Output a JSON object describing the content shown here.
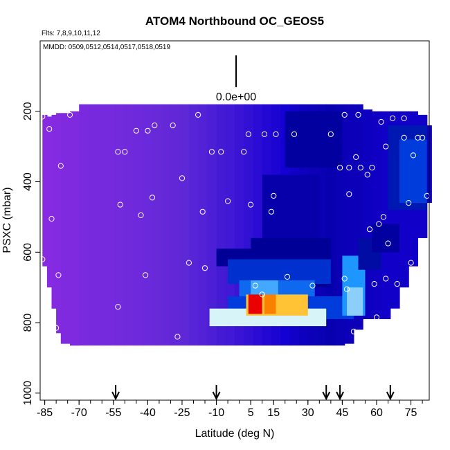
{
  "chart_data": {
    "type": "heatmap",
    "title": "ATOM4 Northbound OC_GEOS5",
    "flights_note": "Flts: 7,8,9,10,11,12",
    "dates_note": "MMDD: 0509,0512,0514,0517,0518,0519",
    "scale_label": "0.0e+00",
    "xlabel": "Latitude (deg N)",
    "ylabel": "PSXC (mbar)",
    "xlim": [
      -87,
      83
    ],
    "ylim": [
      1020,
      0
    ],
    "x_ticks": [
      -85,
      -70,
      -55,
      -40,
      -25,
      -10,
      5,
      15,
      30,
      45,
      60,
      75
    ],
    "x_tick_labels": [
      "-85",
      "-70",
      "-55",
      "-40",
      "-25",
      "-10",
      "5",
      "15",
      "30",
      "45",
      "60",
      "75"
    ],
    "y_ticks": [
      200,
      400,
      600,
      800,
      1000
    ],
    "y_tick_labels": [
      "200",
      "400",
      "600",
      "800",
      "1000"
    ],
    "colors": {
      "violet": "#8a2be2",
      "dark_blue": "#0000cd",
      "light_cyan": "#d8f6f6",
      "red": "#ff0000",
      "point_stroke": "#ffffff"
    },
    "columns": [
      {
        "lat": -86,
        "top": 210,
        "bottom": 640,
        "v": 0.02
      },
      {
        "lat": -84,
        "top": 215,
        "bottom": 700,
        "v": 0.03
      },
      {
        "lat": -82,
        "top": 210,
        "bottom": 760,
        "v": 0.04
      },
      {
        "lat": -80,
        "top": 205,
        "bottom": 830,
        "v": 0.05
      },
      {
        "lat": -78,
        "top": 205,
        "bottom": 860,
        "v": 0.07
      },
      {
        "lat": -74,
        "top": 200,
        "bottom": 865,
        "v": 0.08
      },
      {
        "lat": -70,
        "top": 180,
        "bottom": 865,
        "v": 0.12
      },
      {
        "lat": -66,
        "top": 180,
        "bottom": 865,
        "v": 0.13
      },
      {
        "lat": -62,
        "top": 180,
        "bottom": 865,
        "v": 0.14
      },
      {
        "lat": -58,
        "top": 180,
        "bottom": 865,
        "v": 0.15
      },
      {
        "lat": -54,
        "top": 180,
        "bottom": 865,
        "v": 0.16
      },
      {
        "lat": -50,
        "top": 180,
        "bottom": 865,
        "v": 0.18
      },
      {
        "lat": -46,
        "top": 180,
        "bottom": 865,
        "v": 0.2
      },
      {
        "lat": -42,
        "top": 180,
        "bottom": 865,
        "v": 0.22
      },
      {
        "lat": -38,
        "top": 180,
        "bottom": 865,
        "v": 0.24
      },
      {
        "lat": -34,
        "top": 180,
        "bottom": 865,
        "v": 0.26
      },
      {
        "lat": -30,
        "top": 180,
        "bottom": 865,
        "v": 0.28
      },
      {
        "lat": -26,
        "top": 180,
        "bottom": 865,
        "v": 0.3
      },
      {
        "lat": -22,
        "top": 180,
        "bottom": 865,
        "v": 0.32
      },
      {
        "lat": -18,
        "top": 180,
        "bottom": 865,
        "v": 0.33
      },
      {
        "lat": -14,
        "top": 180,
        "bottom": 865,
        "v": 0.35
      },
      {
        "lat": -10,
        "top": 180,
        "bottom": 865,
        "v": 0.37
      },
      {
        "lat": -6,
        "top": 180,
        "bottom": 865,
        "v": 0.38
      },
      {
        "lat": -2,
        "top": 180,
        "bottom": 865,
        "v": 0.4
      },
      {
        "lat": 2,
        "top": 180,
        "bottom": 865,
        "v": 0.42
      },
      {
        "lat": 6,
        "top": 180,
        "bottom": 865,
        "v": 0.44
      },
      {
        "lat": 10,
        "top": 180,
        "bottom": 865,
        "v": 0.46
      },
      {
        "lat": 14,
        "top": 180,
        "bottom": 865,
        "v": 0.48
      },
      {
        "lat": 18,
        "top": 180,
        "bottom": 865,
        "v": 0.5
      },
      {
        "lat": 22,
        "top": 180,
        "bottom": 865,
        "v": 0.52
      },
      {
        "lat": 26,
        "top": 180,
        "bottom": 865,
        "v": 0.54
      },
      {
        "lat": 30,
        "top": 180,
        "bottom": 865,
        "v": 0.55
      },
      {
        "lat": 34,
        "top": 180,
        "bottom": 865,
        "v": 0.56
      },
      {
        "lat": 38,
        "top": 180,
        "bottom": 865,
        "v": 0.57
      },
      {
        "lat": 42,
        "top": 180,
        "bottom": 865,
        "v": 0.56
      },
      {
        "lat": 46,
        "top": 180,
        "bottom": 860,
        "v": 0.55
      },
      {
        "lat": 50,
        "top": 180,
        "bottom": 820,
        "v": 0.55
      },
      {
        "lat": 54,
        "top": 195,
        "bottom": 790,
        "v": 0.54
      },
      {
        "lat": 58,
        "top": 200,
        "bottom": 790,
        "v": 0.53
      },
      {
        "lat": 62,
        "top": 200,
        "bottom": 790,
        "v": 0.52
      },
      {
        "lat": 66,
        "top": 200,
        "bottom": 760,
        "v": 0.52
      },
      {
        "lat": 70,
        "top": 200,
        "bottom": 700,
        "v": 0.52
      },
      {
        "lat": 74,
        "top": 200,
        "bottom": 640,
        "v": 0.52
      },
      {
        "lat": 78,
        "top": 210,
        "bottom": 560,
        "v": 0.52
      },
      {
        "lat": 82,
        "top": 240,
        "bottom": 460,
        "v": 0.52
      }
    ],
    "features": [
      {
        "lat0": -10,
        "lat1": 5,
        "p0": 590,
        "p1": 640,
        "v": 0.62
      },
      {
        "lat0": 5,
        "lat1": 40,
        "p0": 560,
        "p1": 700,
        "v": 0.62
      },
      {
        "lat0": -5,
        "lat1": 40,
        "p0": 620,
        "p1": 690,
        "v": 0.7
      },
      {
        "lat0": 0,
        "lat1": 33,
        "p0": 680,
        "p1": 730,
        "v": 0.75
      },
      {
        "lat0": 5,
        "lat1": 17,
        "p0": 680,
        "p1": 720,
        "v": 0.8
      },
      {
        "lat0": -5,
        "lat1": 50,
        "p0": 725,
        "p1": 790,
        "v": 0.72
      },
      {
        "lat0": -13,
        "lat1": 38,
        "p0": 760,
        "p1": 810,
        "v": 0.88
      },
      {
        "lat0": 3,
        "lat1": 30,
        "p0": 720,
        "p1": 780,
        "v": 0.95
      },
      {
        "lat0": 4,
        "lat1": 10,
        "p0": 720,
        "p1": 775,
        "v": 1.0
      },
      {
        "lat0": 11,
        "lat1": 16,
        "p0": 720,
        "p1": 775,
        "v": 0.97
      },
      {
        "lat0": 45,
        "lat1": 55,
        "p0": 610,
        "p1": 780,
        "v": 0.78
      },
      {
        "lat0": 47,
        "lat1": 54,
        "p0": 700,
        "p1": 780,
        "v": 0.84
      },
      {
        "lat0": 52,
        "lat1": 62,
        "p0": 560,
        "p1": 650,
        "v": 0.64
      },
      {
        "lat0": 58,
        "lat1": 70,
        "p0": 520,
        "p1": 600,
        "v": 0.6
      },
      {
        "lat0": 65,
        "lat1": 82,
        "p0": 240,
        "p1": 480,
        "v": 0.66
      },
      {
        "lat0": 70,
        "lat1": 82,
        "p0": 280,
        "p1": 460,
        "v": 0.72
      },
      {
        "lat0": 20,
        "lat1": 45,
        "p0": 200,
        "p1": 360,
        "v": 0.6
      },
      {
        "lat0": 10,
        "lat1": 35,
        "p0": 380,
        "p1": 560,
        "v": 0.58
      }
    ],
    "points": [
      {
        "lat": -86,
        "p": 215
      },
      {
        "lat": -83,
        "p": 250
      },
      {
        "lat": -74,
        "p": 210
      },
      {
        "lat": -78,
        "p": 355
      },
      {
        "lat": -82,
        "p": 505
      },
      {
        "lat": -86,
        "p": 620
      },
      {
        "lat": -79,
        "p": 665
      },
      {
        "lat": -80,
        "p": 815
      },
      {
        "lat": -53,
        "p": 755
      },
      {
        "lat": -53,
        "p": 315
      },
      {
        "lat": -50,
        "p": 315
      },
      {
        "lat": -45,
        "p": 255
      },
      {
        "lat": -40,
        "p": 255
      },
      {
        "lat": -37,
        "p": 240
      },
      {
        "lat": -52,
        "p": 465
      },
      {
        "lat": -43,
        "p": 495
      },
      {
        "lat": -38,
        "p": 445
      },
      {
        "lat": -41,
        "p": 665
      },
      {
        "lat": -29,
        "p": 240
      },
      {
        "lat": -25,
        "p": 390
      },
      {
        "lat": -22,
        "p": 630
      },
      {
        "lat": -18,
        "p": 210
      },
      {
        "lat": -16,
        "p": 485
      },
      {
        "lat": -15,
        "p": 645
      },
      {
        "lat": -27,
        "p": 840
      },
      {
        "lat": -12,
        "p": 315
      },
      {
        "lat": -8,
        "p": 315
      },
      {
        "lat": -5,
        "p": 455
      },
      {
        "lat": 2,
        "p": 315
      },
      {
        "lat": 4,
        "p": 265
      },
      {
        "lat": 5,
        "p": 465
      },
      {
        "lat": 7,
        "p": 695
      },
      {
        "lat": 10,
        "p": 720
      },
      {
        "lat": 11,
        "p": 265
      },
      {
        "lat": 14,
        "p": 485
      },
      {
        "lat": 15,
        "p": 440
      },
      {
        "lat": 16,
        "p": 265
      },
      {
        "lat": 21,
        "p": 670
      },
      {
        "lat": 24,
        "p": 265
      },
      {
        "lat": 32,
        "p": 695
      },
      {
        "lat": 40,
        "p": 265
      },
      {
        "lat": 44,
        "p": 360
      },
      {
        "lat": 46,
        "p": 210
      },
      {
        "lat": 46,
        "p": 675
      },
      {
        "lat": 47,
        "p": 705
      },
      {
        "lat": 48,
        "p": 435
      },
      {
        "lat": 48,
        "p": 360
      },
      {
        "lat": 50,
        "p": 825
      },
      {
        "lat": 51,
        "p": 330
      },
      {
        "lat": 52,
        "p": 210
      },
      {
        "lat": 53,
        "p": 360
      },
      {
        "lat": 56,
        "p": 380
      },
      {
        "lat": 57,
        "p": 535
      },
      {
        "lat": 58,
        "p": 360
      },
      {
        "lat": 59,
        "p": 690
      },
      {
        "lat": 60,
        "p": 785
      },
      {
        "lat": 61,
        "p": 520
      },
      {
        "lat": 62,
        "p": 230
      },
      {
        "lat": 63,
        "p": 500
      },
      {
        "lat": 64,
        "p": 300
      },
      {
        "lat": 64,
        "p": 675
      },
      {
        "lat": 65,
        "p": 575
      },
      {
        "lat": 67,
        "p": 220
      },
      {
        "lat": 69,
        "p": 690
      },
      {
        "lat": 72,
        "p": 275
      },
      {
        "lat": 72,
        "p": 220
      },
      {
        "lat": 74,
        "p": 460
      },
      {
        "lat": 75,
        "p": 630
      },
      {
        "lat": 76,
        "p": 325
      },
      {
        "lat": 78,
        "p": 275
      },
      {
        "lat": 80,
        "p": 275
      },
      {
        "lat": 82,
        "p": 440
      }
    ],
    "flight_arrows": [
      -54,
      -10,
      38,
      44,
      66
    ]
  }
}
